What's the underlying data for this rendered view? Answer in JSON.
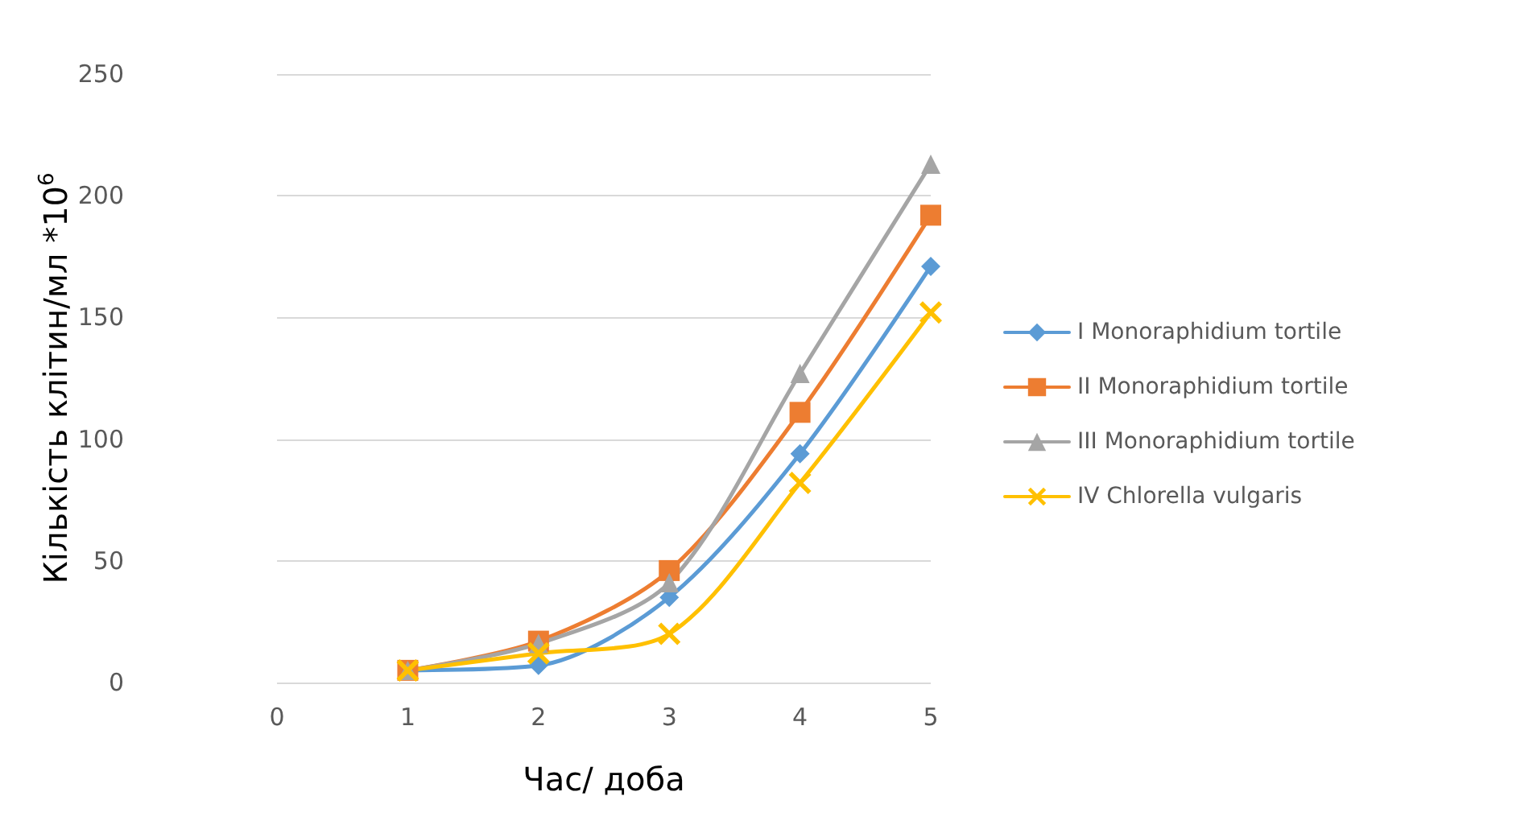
{
  "chart_data": {
    "type": "line",
    "xlabel": "Час/ доба",
    "ylabel": "Кількість клітин/мл *10$^{6}$",
    "x": [
      1,
      2,
      3,
      4,
      5
    ],
    "xlim": [
      0,
      5
    ],
    "xticks": [
      0,
      1,
      2,
      3,
      4,
      5
    ],
    "ylim": [
      0,
      250
    ],
    "yticks": [
      0,
      50,
      100,
      150,
      200,
      250
    ],
    "grid": "y",
    "legend": "right",
    "series": [
      {
        "name": "I Monoraphidium tortile",
        "color": "#5b9bd5",
        "marker": "diamond",
        "values": [
          5,
          7,
          35,
          94,
          171
        ]
      },
      {
        "name": "II Monoraphidium tortile",
        "color": "#ed7d31",
        "marker": "square",
        "values": [
          5,
          17,
          46,
          111,
          192
        ]
      },
      {
        "name": "III Monoraphidium tortile",
        "color": "#a5a5a5",
        "marker": "triangle",
        "values": [
          5,
          16,
          41,
          127,
          213
        ]
      },
      {
        "name": "IV Chlorella vulgaris",
        "color": "#ffc000",
        "marker": "cross",
        "values": [
          5,
          12,
          20,
          82,
          152
        ]
      }
    ]
  }
}
